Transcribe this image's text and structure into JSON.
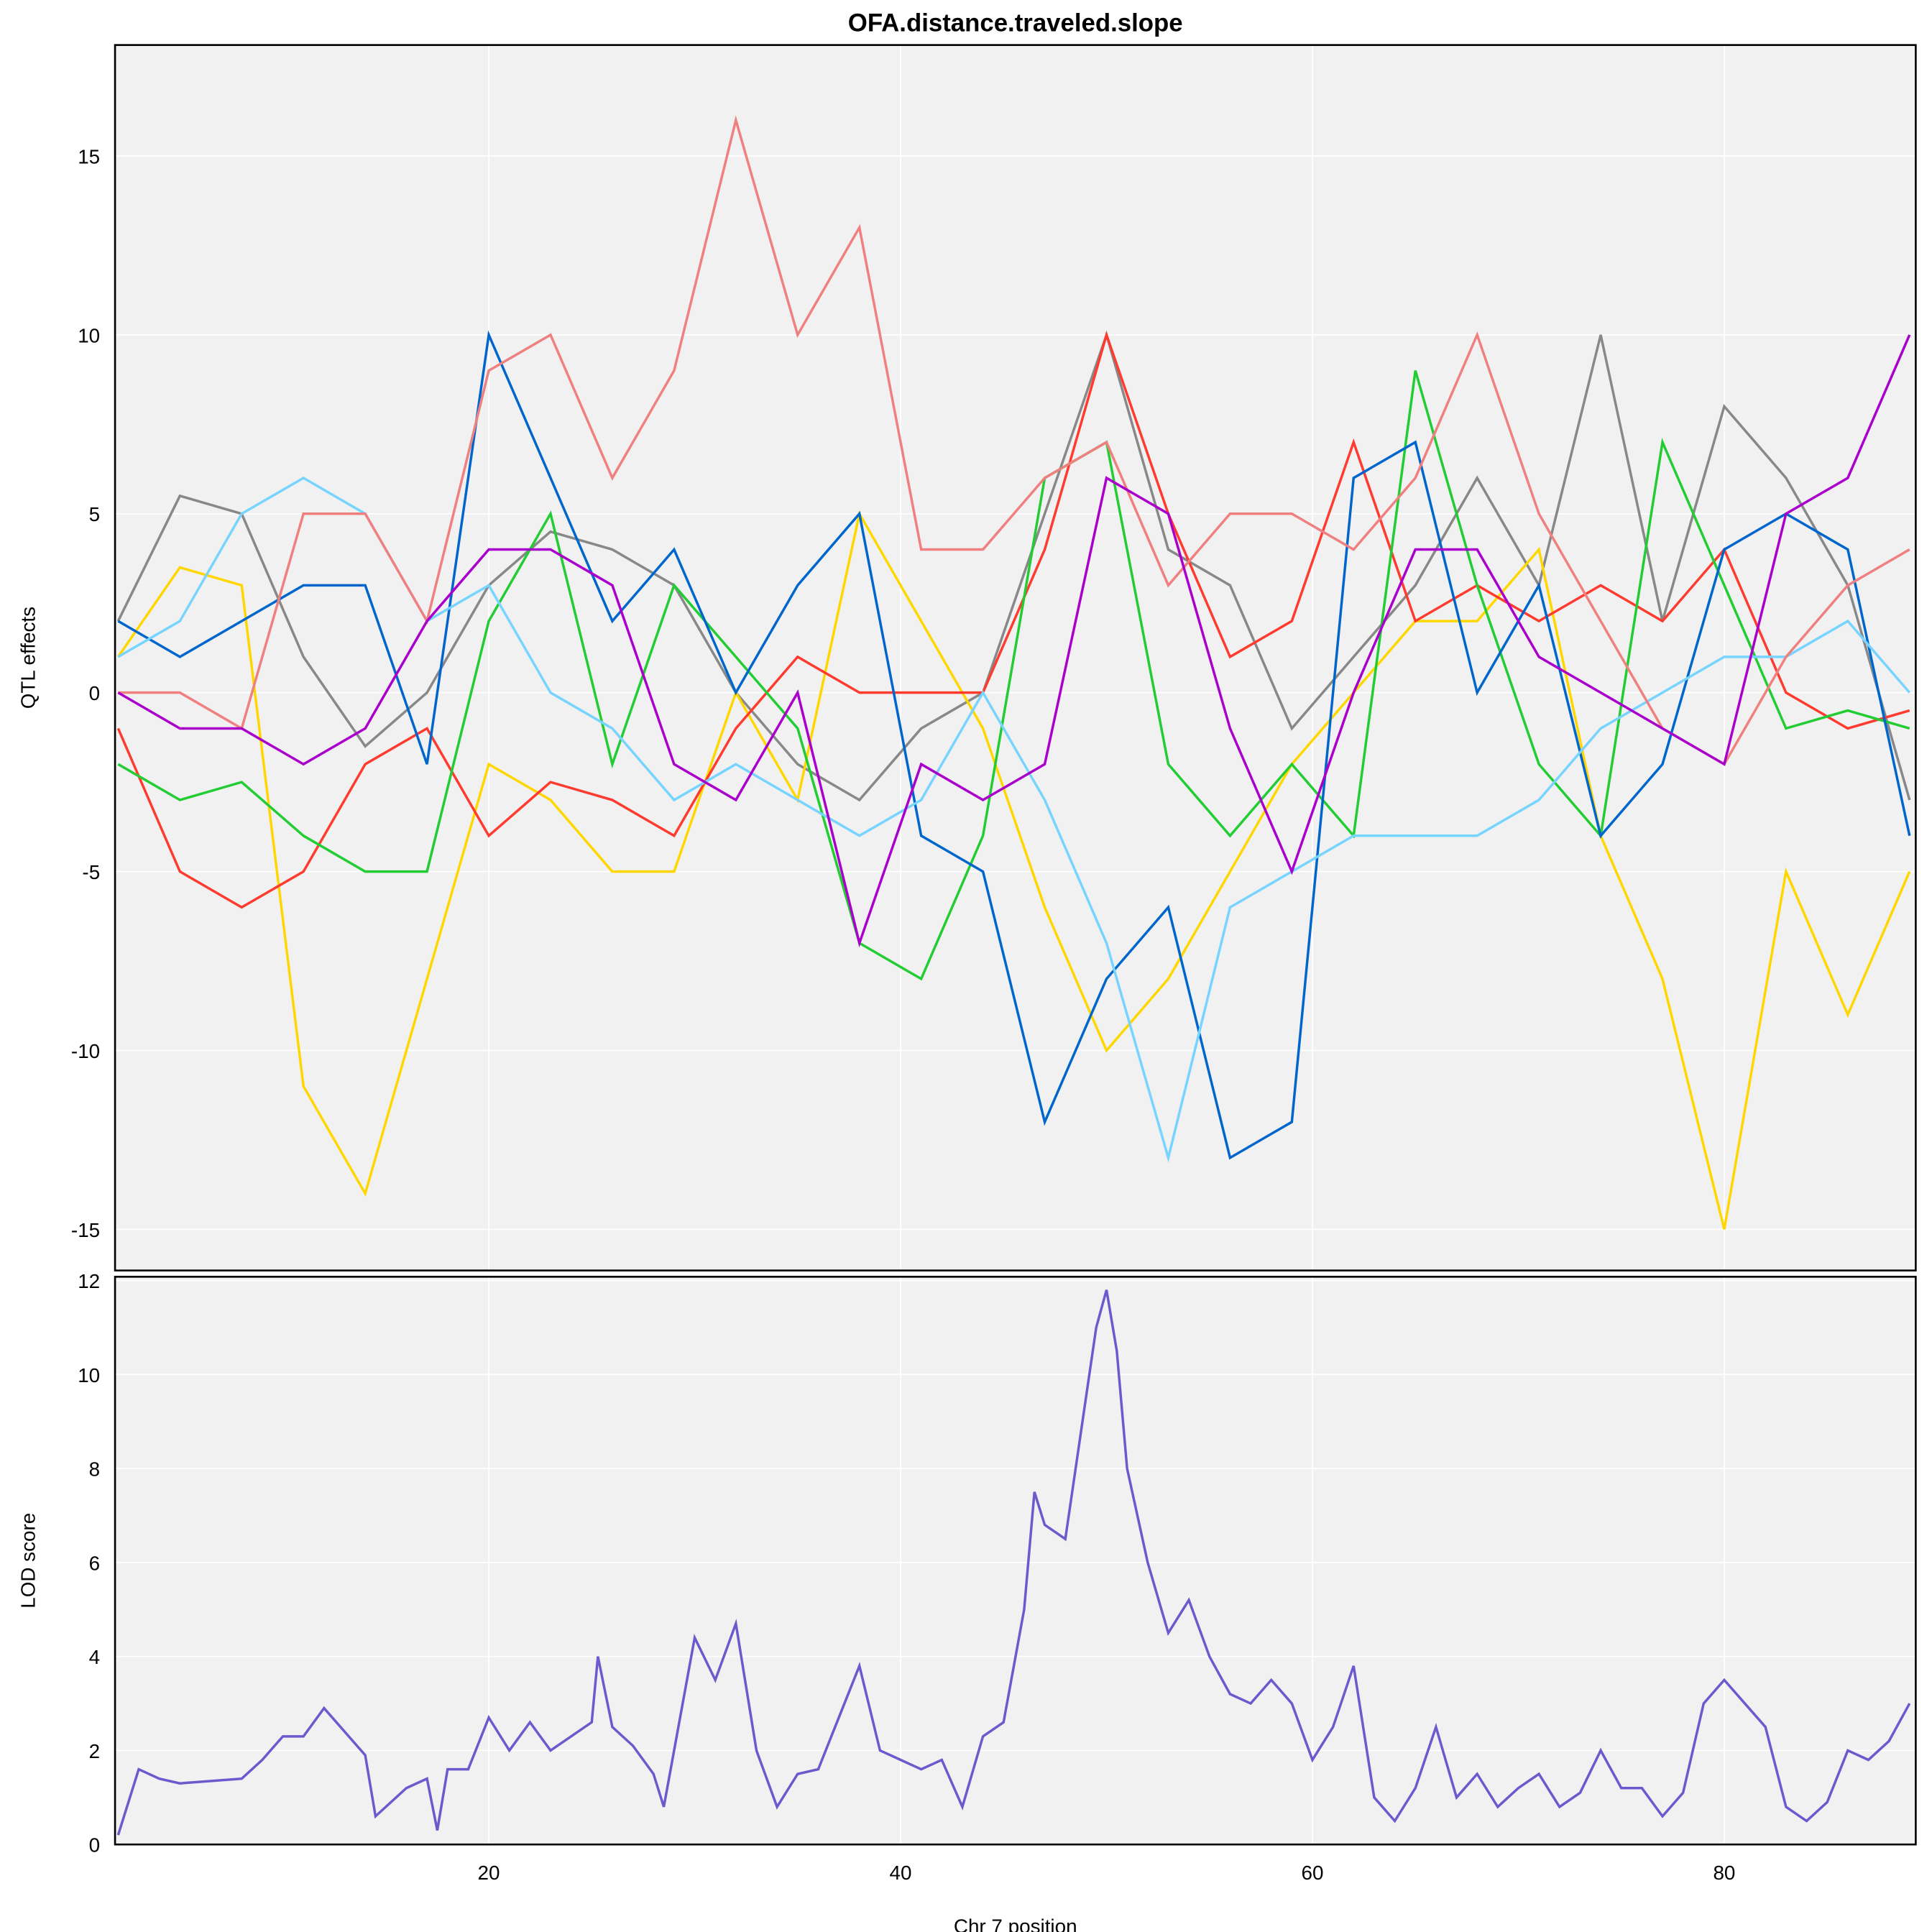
{
  "chart_data": [
    {
      "type": "line",
      "title": "OFA.distance.traveled.slope",
      "xlabel": "Chr 7 position",
      "ylabel": "QTL effects",
      "xlim": [
        1.85,
        89.3
      ],
      "ylim": [
        -16.15,
        18.1
      ],
      "xticks": [
        20,
        40,
        60,
        80
      ],
      "yticks": [
        -15,
        -10,
        -5,
        0,
        5,
        10,
        15
      ],
      "grid": true,
      "legend": "none",
      "x": [
        2,
        5,
        8,
        11,
        14,
        17,
        20,
        23,
        26,
        29,
        32,
        35,
        38,
        41,
        44,
        47,
        50,
        53,
        56,
        59,
        62,
        65,
        68,
        71,
        74,
        77,
        80,
        83,
        86,
        89
      ],
      "series": [
        {
          "name": "gray",
          "color": "#888888",
          "values": [
            2,
            5.5,
            5,
            1,
            -1.5,
            0,
            3,
            4.5,
            4,
            3,
            0,
            -2,
            -3,
            -1,
            0,
            5,
            10,
            4,
            3,
            -1,
            1,
            3,
            6,
            3,
            10,
            2,
            8,
            6,
            3,
            -3
          ]
        },
        {
          "name": "yellow",
          "color": "#FFD700",
          "values": [
            1,
            3.5,
            3,
            -11,
            -14,
            -8,
            -2,
            -3,
            -5,
            -5,
            0,
            -3,
            5,
            2,
            -1,
            -6,
            -10,
            -8,
            -5,
            -2,
            0,
            2,
            2,
            4,
            -4,
            -8,
            -15,
            -5,
            -9,
            -5
          ]
        },
        {
          "name": "red",
          "color": "#FF3B2F",
          "values": [
            -1,
            -5,
            -6,
            -5,
            -2,
            -1,
            -4,
            -2.5,
            -3,
            -4,
            -1,
            1,
            0,
            0,
            0,
            4,
            10,
            5,
            1,
            2,
            7,
            2,
            3,
            2,
            3,
            2,
            4,
            0,
            -1,
            -0.5
          ]
        },
        {
          "name": "green",
          "color": "#22CC33",
          "values": [
            -2,
            -3,
            -2.5,
            -4,
            -5,
            -5,
            2,
            5,
            -2,
            3,
            1,
            -1,
            -7,
            -8,
            -4,
            6,
            7,
            -2,
            -4,
            -2,
            -4,
            9,
            3,
            -2,
            -4,
            7,
            3,
            -1,
            -0.5,
            -1
          ]
        },
        {
          "name": "blue",
          "color": "#0066CC",
          "values": [
            2,
            1,
            2,
            3,
            3,
            -2,
            10,
            6,
            2,
            4,
            0,
            3,
            5,
            -4,
            -5,
            -12,
            -8,
            -6,
            -13,
            -12,
            6,
            7,
            0,
            3,
            -4,
            -2,
            4,
            5,
            4,
            -4
          ]
        },
        {
          "name": "light-blue",
          "color": "#77D4FF",
          "values": [
            1,
            2,
            5,
            6,
            5,
            2,
            3,
            0,
            -1,
            -3,
            -2,
            -3,
            -4,
            -3,
            0,
            -3,
            -7,
            -13,
            -6,
            -5,
            -4,
            -4,
            -4,
            -3,
            -1,
            0,
            1,
            1,
            2,
            0
          ]
        },
        {
          "name": "salmon",
          "color": "#F08080",
          "values": [
            0,
            0,
            -1,
            5,
            5,
            2,
            9,
            10,
            6,
            9,
            16,
            10,
            13,
            4,
            4,
            6,
            7,
            3,
            5,
            5,
            4,
            6,
            10,
            5,
            2,
            -1,
            -2,
            1,
            3,
            4
          ]
        },
        {
          "name": "purple",
          "color": "#AA00CC",
          "values": [
            0,
            -1,
            -1,
            -2,
            -1,
            2,
            4,
            4,
            3,
            -2,
            -3,
            0,
            -7,
            -2,
            -3,
            -2,
            6,
            5,
            -1,
            -5,
            0,
            4,
            4,
            1,
            0,
            -1,
            -2,
            5,
            6,
            10
          ]
        }
      ]
    },
    {
      "type": "line",
      "xlabel": "Chr 7 position",
      "ylabel": "LOD score",
      "xlim": [
        1.85,
        89.3
      ],
      "ylim": [
        0,
        12.08
      ],
      "xticks": [
        20,
        40,
        60,
        80
      ],
      "yticks": [
        0,
        2,
        4,
        6,
        8,
        10,
        12
      ],
      "grid": true,
      "series": [
        {
          "name": "LOD",
          "color": "#6A5ACD",
          "x": [
            2,
            3,
            4,
            5,
            8,
            9,
            10,
            11,
            12,
            13,
            14,
            14.5,
            16,
            17,
            17.5,
            18,
            19,
            20,
            21,
            22,
            23,
            24,
            25,
            25.3,
            26,
            27,
            28,
            28.5,
            29,
            30,
            31,
            32,
            33,
            34,
            35,
            36,
            37,
            38,
            39,
            40,
            41,
            42,
            43,
            44,
            45,
            46,
            46.5,
            47,
            48,
            49,
            49.5,
            50,
            50.5,
            51,
            52,
            53,
            54,
            55,
            56,
            57,
            58,
            59,
            60,
            61,
            62,
            63,
            64,
            65,
            66,
            67,
            68,
            69,
            70,
            71,
            72,
            73,
            74,
            75,
            76,
            77,
            78,
            79,
            80,
            81,
            82,
            83,
            84,
            85,
            86,
            87,
            88,
            89
          ],
          "values": [
            0.2,
            1.6,
            1.4,
            1.3,
            1.4,
            1.8,
            2.3,
            2.3,
            2.9,
            2.4,
            1.9,
            0.6,
            1.2,
            1.4,
            0.3,
            1.6,
            1.6,
            2.7,
            2.0,
            2.6,
            2.0,
            2.3,
            2.6,
            4.0,
            2.5,
            2.1,
            1.5,
            0.8,
            2.0,
            4.4,
            3.5,
            4.7,
            2.0,
            0.8,
            1.5,
            1.6,
            2.7,
            3.8,
            2.0,
            1.8,
            1.6,
            1.8,
            0.8,
            2.3,
            2.6,
            5.0,
            7.5,
            6.8,
            6.5,
            9.5,
            11.0,
            11.8,
            10.5,
            8.0,
            6.0,
            4.5,
            5.2,
            4.0,
            3.2,
            3.0,
            3.5,
            3.0,
            1.8,
            2.5,
            3.8,
            1.0,
            0.5,
            1.2,
            2.5,
            1.0,
            1.5,
            0.8,
            1.2,
            1.5,
            0.8,
            1.1,
            2.0,
            1.2,
            1.2,
            0.6,
            1.1,
            3.0,
            3.5,
            3.0,
            2.5,
            0.8,
            0.5,
            0.9,
            2.0,
            1.8,
            2.2,
            3.0
          ]
        }
      ]
    }
  ]
}
